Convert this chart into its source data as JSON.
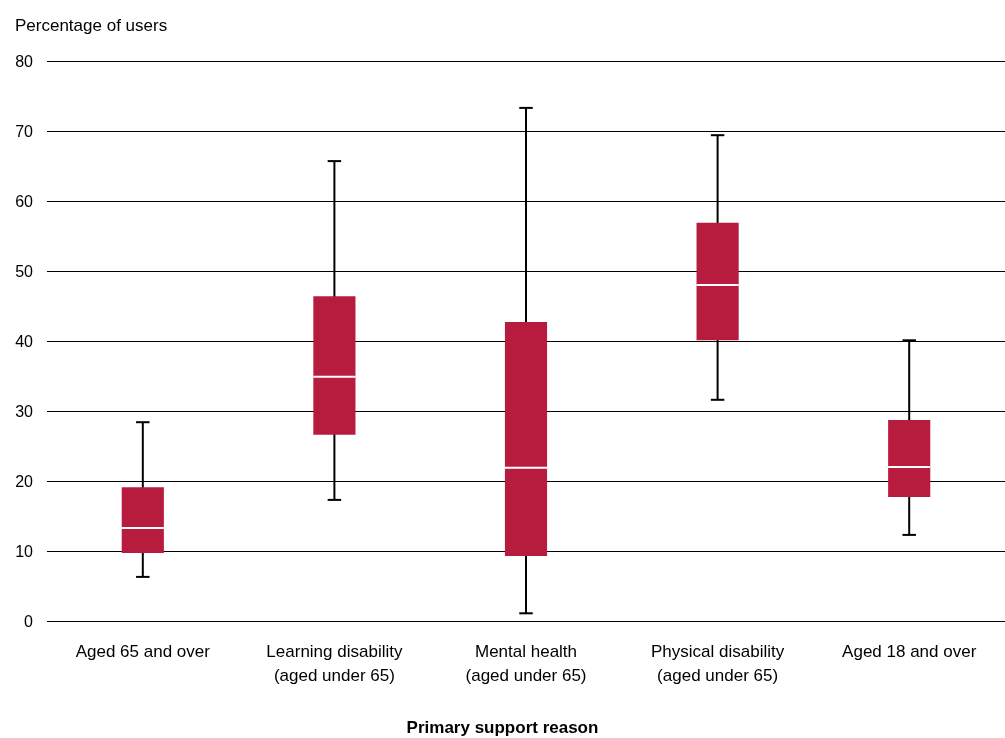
{
  "chart_data": {
    "type": "box",
    "ylabel": "Percentage of users",
    "xlabel": "Primary support reason",
    "categories": [
      "Aged 65 and over",
      "Learning disability\n(aged under 65)",
      "Mental health\n(aged under 65)",
      "Physical disability\n(aged under 65)",
      "Aged 18 and over"
    ],
    "color": "#b71c3f",
    "boxes": [
      {
        "low": 6.3,
        "q1": 9.7,
        "median": 13.3,
        "q3": 19.1,
        "high": 28.4
      },
      {
        "low": 17.3,
        "q1": 26.6,
        "median": 34.9,
        "q3": 46.4,
        "high": 65.7
      },
      {
        "low": 1.1,
        "q1": 9.3,
        "median": 21.9,
        "q3": 42.7,
        "high": 73.3
      },
      {
        "low": 31.6,
        "q1": 40.1,
        "median": 48,
        "q3": 56.9,
        "high": 69.4
      },
      {
        "low": 12.3,
        "q1": 17.7,
        "median": 22,
        "q3": 28.7,
        "high": 40.1
      }
    ],
    "ylim": [
      0,
      80
    ],
    "yticks": [
      0,
      10,
      20,
      30,
      40,
      50,
      60,
      70,
      80
    ],
    "grid": "y"
  }
}
